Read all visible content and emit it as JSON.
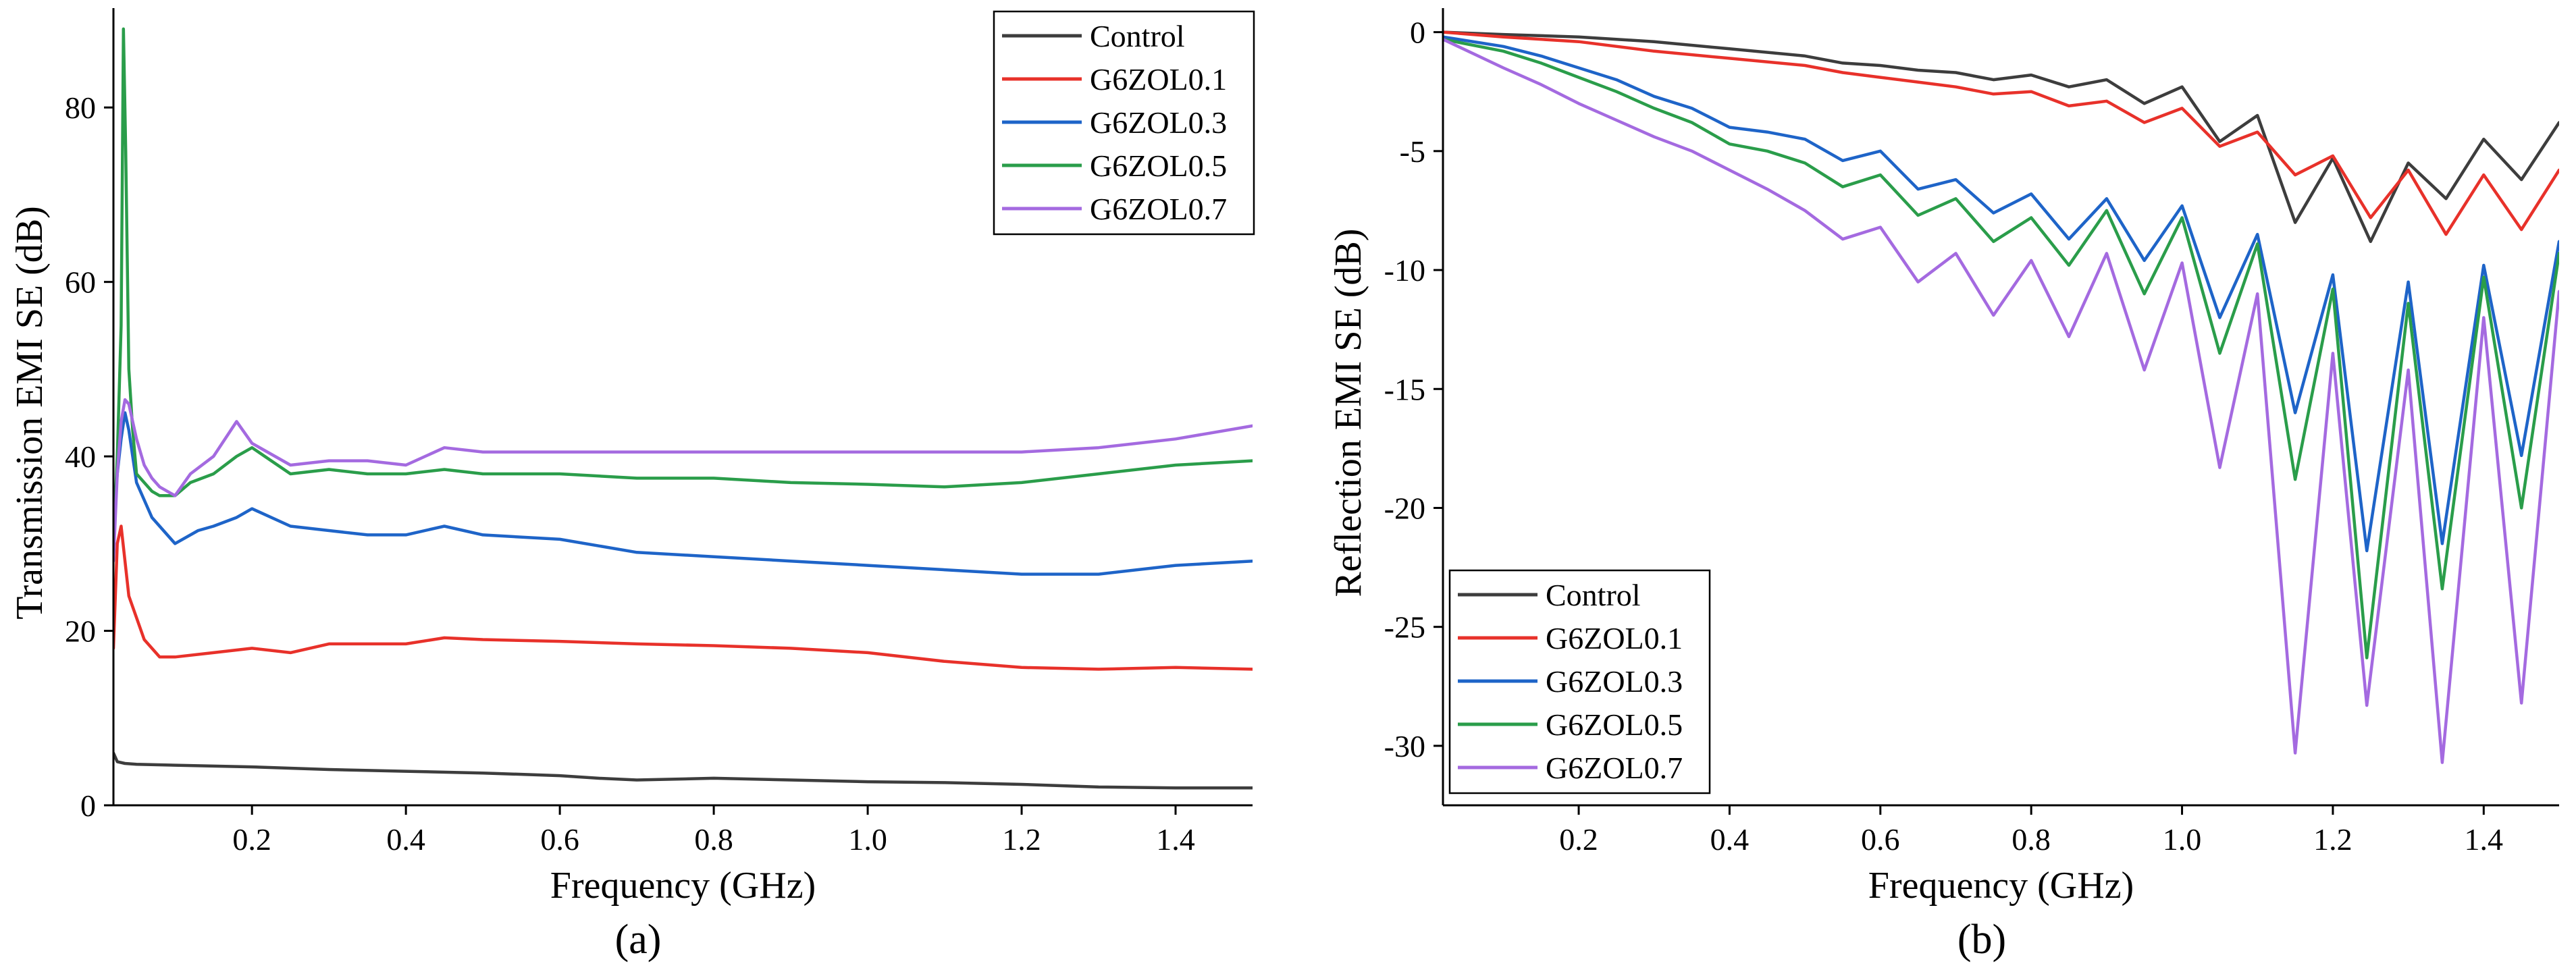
{
  "chart_data": [
    {
      "type": "line",
      "panel_label": "(a)",
      "xlabel": "Frequency (GHz)",
      "ylabel": "Transmission EMI SE (dB)",
      "xlim": [
        0.02,
        1.5
      ],
      "ylim": [
        0,
        90
      ],
      "xticks": [
        0.2,
        0.4,
        0.6,
        0.8,
        1.0,
        1.2,
        1.4
      ],
      "xtick_labels": [
        "0.2",
        "0.4",
        "0.6",
        "0.8",
        "1.0",
        "1.2",
        "1.4"
      ],
      "yticks": [
        0,
        20,
        40,
        60,
        80
      ],
      "ytick_labels": [
        "0",
        "20",
        "40",
        "60",
        "80"
      ],
      "legend_position": "top-right",
      "series": [
        {
          "name": "Control",
          "color": "#3d3d3d",
          "x": [
            0.02,
            0.025,
            0.035,
            0.05,
            0.1,
            0.2,
            0.3,
            0.4,
            0.5,
            0.6,
            0.65,
            0.7,
            0.8,
            0.9,
            1.0,
            1.1,
            1.2,
            1.3,
            1.4,
            1.5
          ],
          "y": [
            6.0,
            5.0,
            4.8,
            4.7,
            4.6,
            4.4,
            4.1,
            3.9,
            3.7,
            3.4,
            3.1,
            2.9,
            3.1,
            2.9,
            2.7,
            2.6,
            2.4,
            2.1,
            2.0,
            2.0
          ]
        },
        {
          "name": "G6ZOL0.1",
          "color": "#e8312a",
          "x": [
            0.02,
            0.025,
            0.03,
            0.04,
            0.06,
            0.08,
            0.1,
            0.15,
            0.2,
            0.25,
            0.3,
            0.4,
            0.45,
            0.5,
            0.6,
            0.7,
            0.8,
            0.9,
            1.0,
            1.1,
            1.2,
            1.3,
            1.4,
            1.5
          ],
          "y": [
            18,
            30,
            32,
            24,
            19,
            17,
            17,
            17.5,
            18,
            17.5,
            18.5,
            18.5,
            19.2,
            19,
            18.8,
            18.5,
            18.3,
            18,
            17.5,
            16.5,
            15.8,
            15.6,
            15.8,
            15.6
          ]
        },
        {
          "name": "G6ZOL0.3",
          "color": "#1e64c8",
          "x": [
            0.02,
            0.025,
            0.03,
            0.035,
            0.04,
            0.05,
            0.07,
            0.1,
            0.13,
            0.15,
            0.18,
            0.2,
            0.25,
            0.3,
            0.35,
            0.4,
            0.45,
            0.5,
            0.6,
            0.7,
            0.8,
            0.9,
            1.0,
            1.1,
            1.2,
            1.3,
            1.4,
            1.5
          ],
          "y": [
            32,
            38,
            42,
            45,
            43,
            37,
            33,
            30,
            31.5,
            32,
            33,
            34,
            32,
            31.5,
            31,
            31,
            32,
            31,
            30.5,
            29,
            28.5,
            28,
            27.5,
            27,
            26.5,
            26.5,
            27.5,
            28
          ]
        },
        {
          "name": "G6ZOL0.5",
          "color": "#2a9d4a",
          "x": [
            0.02,
            0.025,
            0.03,
            0.033,
            0.036,
            0.04,
            0.045,
            0.05,
            0.06,
            0.07,
            0.08,
            0.1,
            0.12,
            0.15,
            0.18,
            0.2,
            0.25,
            0.3,
            0.35,
            0.4,
            0.45,
            0.5,
            0.6,
            0.7,
            0.8,
            0.9,
            1.0,
            1.1,
            1.2,
            1.3,
            1.4,
            1.5
          ],
          "y": [
            30,
            40,
            55,
            89,
            75,
            50,
            43,
            38,
            37,
            36,
            35.5,
            35.5,
            37,
            38,
            40,
            41,
            38,
            38.5,
            38,
            38,
            38.5,
            38,
            38,
            37.5,
            37.5,
            37,
            36.8,
            36.5,
            37,
            38,
            39,
            39.5
          ]
        },
        {
          "name": "G6ZOL0.7",
          "color": "#a46ae0",
          "x": [
            0.02,
            0.025,
            0.03,
            0.035,
            0.04,
            0.05,
            0.06,
            0.07,
            0.08,
            0.1,
            0.12,
            0.15,
            0.18,
            0.2,
            0.25,
            0.3,
            0.35,
            0.4,
            0.45,
            0.5,
            0.6,
            0.7,
            0.8,
            0.9,
            1.0,
            1.1,
            1.2,
            1.3,
            1.4,
            1.5
          ],
          "y": [
            28,
            38,
            44,
            46.5,
            46,
            42,
            39,
            37.5,
            36.5,
            35.5,
            38,
            40,
            44,
            41.5,
            39,
            39.5,
            39.5,
            39,
            41,
            40.5,
            40.5,
            40.5,
            40.5,
            40.5,
            40.5,
            40.5,
            40.5,
            41,
            42,
            43.5
          ]
        }
      ]
    },
    {
      "type": "line",
      "panel_label": "(b)",
      "xlabel": "Frequency (GHz)",
      "ylabel": "Reflection EMI SE (dB)",
      "xlim": [
        0.02,
        1.5
      ],
      "ylim": [
        -32.5,
        0.5
      ],
      "xticks": [
        0.2,
        0.4,
        0.6,
        0.8,
        1.0,
        1.2,
        1.4
      ],
      "xtick_labels": [
        "0.2",
        "0.4",
        "0.6",
        "0.8",
        "1.0",
        "1.2",
        "1.4"
      ],
      "yticks": [
        0,
        -5,
        -10,
        -15,
        -20,
        -25,
        -30
      ],
      "ytick_labels": [
        "0",
        "-5",
        "-10",
        "-15",
        "-20",
        "-25",
        "-30"
      ],
      "legend_position": "bottom-left",
      "series": [
        {
          "name": "Control",
          "color": "#3d3d3d",
          "x": [
            0.02,
            0.1,
            0.2,
            0.3,
            0.4,
            0.5,
            0.55,
            0.6,
            0.65,
            0.7,
            0.75,
            0.8,
            0.85,
            0.9,
            0.95,
            1.0,
            1.05,
            1.1,
            1.15,
            1.2,
            1.25,
            1.3,
            1.35,
            1.4,
            1.45,
            1.5
          ],
          "y": [
            0,
            -0.1,
            -0.2,
            -0.4,
            -0.7,
            -1.0,
            -1.3,
            -1.4,
            -1.6,
            -1.7,
            -2.0,
            -1.8,
            -2.3,
            -2.0,
            -3.0,
            -2.3,
            -4.6,
            -3.5,
            -8.0,
            -5.3,
            -8.8,
            -5.5,
            -7.0,
            -4.5,
            -6.2,
            -3.8
          ]
        },
        {
          "name": "G6ZOL0.1",
          "color": "#e8312a",
          "x": [
            0.02,
            0.1,
            0.2,
            0.3,
            0.4,
            0.5,
            0.55,
            0.6,
            0.65,
            0.7,
            0.75,
            0.8,
            0.85,
            0.9,
            0.95,
            1.0,
            1.05,
            1.1,
            1.15,
            1.2,
            1.25,
            1.3,
            1.35,
            1.4,
            1.45,
            1.5
          ],
          "y": [
            0,
            -0.2,
            -0.4,
            -0.8,
            -1.1,
            -1.4,
            -1.7,
            -1.9,
            -2.1,
            -2.3,
            -2.6,
            -2.5,
            -3.1,
            -2.9,
            -3.8,
            -3.2,
            -4.8,
            -4.2,
            -6.0,
            -5.2,
            -7.8,
            -5.8,
            -8.5,
            -6.0,
            -8.3,
            -5.8
          ]
        },
        {
          "name": "G6ZOL0.3",
          "color": "#1e64c8",
          "x": [
            0.02,
            0.1,
            0.15,
            0.2,
            0.25,
            0.3,
            0.35,
            0.4,
            0.45,
            0.5,
            0.55,
            0.6,
            0.65,
            0.7,
            0.75,
            0.8,
            0.85,
            0.9,
            0.95,
            1.0,
            1.05,
            1.1,
            1.15,
            1.2,
            1.245,
            1.3,
            1.345,
            1.4,
            1.45,
            1.5
          ],
          "y": [
            -0.2,
            -0.6,
            -1.0,
            -1.5,
            -2.0,
            -2.7,
            -3.2,
            -4.0,
            -4.2,
            -4.5,
            -5.4,
            -5.0,
            -6.6,
            -6.2,
            -7.6,
            -6.8,
            -8.7,
            -7.0,
            -9.6,
            -7.3,
            -12.0,
            -8.5,
            -16.0,
            -10.2,
            -21.8,
            -10.5,
            -21.5,
            -9.8,
            -17.8,
            -8.8
          ]
        },
        {
          "name": "G6ZOL0.5",
          "color": "#2a9d4a",
          "x": [
            0.02,
            0.1,
            0.15,
            0.2,
            0.25,
            0.3,
            0.35,
            0.4,
            0.45,
            0.5,
            0.55,
            0.6,
            0.65,
            0.7,
            0.75,
            0.8,
            0.85,
            0.9,
            0.95,
            1.0,
            1.05,
            1.1,
            1.15,
            1.2,
            1.245,
            1.3,
            1.345,
            1.4,
            1.45,
            1.5
          ],
          "y": [
            -0.3,
            -0.8,
            -1.3,
            -1.9,
            -2.5,
            -3.2,
            -3.8,
            -4.7,
            -5.0,
            -5.5,
            -6.5,
            -6.0,
            -7.7,
            -7.0,
            -8.8,
            -7.8,
            -9.8,
            -7.5,
            -11.0,
            -7.8,
            -13.5,
            -8.9,
            -18.8,
            -10.8,
            -26.3,
            -11.4,
            -23.4,
            -10.3,
            -20.0,
            -9.3
          ]
        },
        {
          "name": "G6ZOL0.7",
          "color": "#a46ae0",
          "x": [
            0.02,
            0.1,
            0.15,
            0.2,
            0.25,
            0.3,
            0.35,
            0.4,
            0.45,
            0.5,
            0.55,
            0.6,
            0.65,
            0.7,
            0.75,
            0.8,
            0.85,
            0.9,
            0.95,
            1.0,
            1.05,
            1.1,
            1.15,
            1.2,
            1.245,
            1.3,
            1.345,
            1.4,
            1.45,
            1.5
          ],
          "y": [
            -0.3,
            -1.5,
            -2.2,
            -3.0,
            -3.7,
            -4.4,
            -5.0,
            -5.8,
            -6.6,
            -7.5,
            -8.7,
            -8.2,
            -10.5,
            -9.3,
            -11.9,
            -9.6,
            -12.8,
            -9.3,
            -14.2,
            -9.7,
            -18.3,
            -11.0,
            -30.3,
            -13.5,
            -28.3,
            -14.2,
            -30.7,
            -12.0,
            -28.2,
            -10.9
          ]
        }
      ]
    }
  ]
}
